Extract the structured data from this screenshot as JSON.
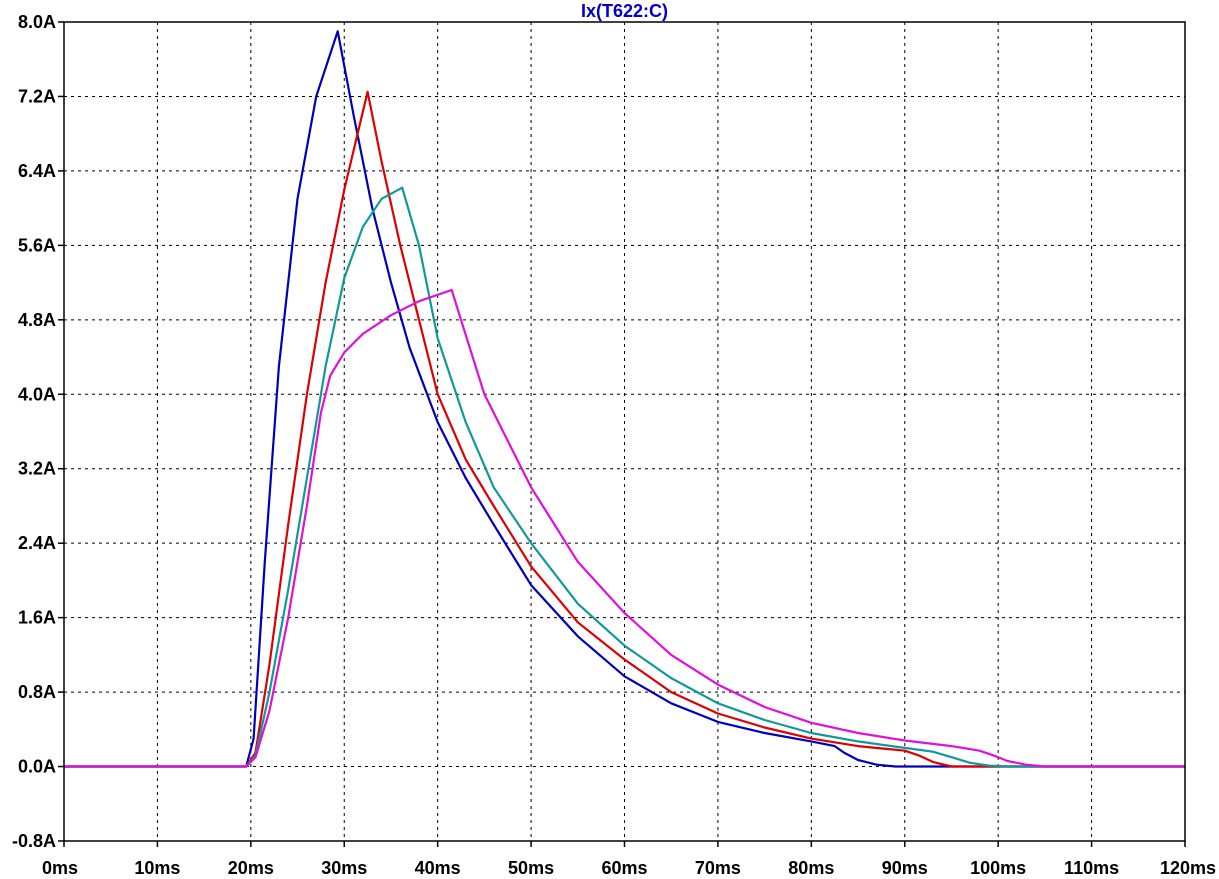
{
  "chart_data": {
    "type": "line",
    "title": "Ix(T622:C)",
    "title_color": "#0000cc",
    "xlabel": "",
    "ylabel": "",
    "xlim": [
      0,
      120
    ],
    "ylim": [
      -0.8,
      8.0
    ],
    "x_unit": "ms",
    "y_unit": "A",
    "grid": true,
    "x_ticks": [
      0,
      10,
      20,
      30,
      40,
      50,
      60,
      70,
      80,
      90,
      100,
      110,
      120
    ],
    "x_tick_labels": [
      "0ms",
      "10ms",
      "20ms",
      "30ms",
      "40ms",
      "50ms",
      "60ms",
      "70ms",
      "80ms",
      "90ms",
      "100ms",
      "110ms",
      "120ms"
    ],
    "y_ticks": [
      -0.8,
      0.0,
      0.8,
      1.6,
      2.4,
      3.2,
      4.0,
      4.8,
      5.6,
      6.4,
      7.2,
      8.0
    ],
    "y_tick_labels": [
      "-0.8A",
      "0.0A",
      "0.8A",
      "1.6A",
      "2.4A",
      "3.2A",
      "4.0A",
      "4.8A",
      "5.6A",
      "6.4A",
      "7.2A",
      "8.0A"
    ],
    "series": [
      {
        "color": "#0000bb",
        "x": [
          0,
          19.5,
          20.3,
          21.5,
          23,
          25,
          27,
          29.3,
          31,
          33,
          35,
          37,
          40,
          43,
          46,
          50,
          55,
          60,
          65,
          70,
          75,
          80,
          82.5,
          83.5,
          85,
          87,
          89,
          92,
          120
        ],
        "y": [
          0,
          0,
          0.3,
          2.2,
          4.3,
          6.1,
          7.2,
          7.9,
          7.0,
          6.0,
          5.2,
          4.5,
          3.7,
          3.1,
          2.6,
          1.95,
          1.4,
          0.97,
          0.68,
          0.48,
          0.36,
          0.27,
          0.22,
          0.15,
          0.07,
          0.02,
          0.0,
          0.0,
          0
        ]
      },
      {
        "color": "#dd0000",
        "x": [
          0,
          19.5,
          20.5,
          22,
          24,
          26,
          28,
          30,
          32.5,
          34,
          36,
          38,
          40,
          43,
          46,
          50,
          55,
          60,
          65,
          70,
          75,
          80,
          85,
          90,
          91.5,
          93,
          95,
          97,
          120
        ],
        "y": [
          0,
          0,
          0.15,
          1.1,
          2.6,
          4.0,
          5.2,
          6.2,
          7.25,
          6.5,
          5.6,
          4.8,
          4.0,
          3.3,
          2.8,
          2.15,
          1.55,
          1.15,
          0.8,
          0.57,
          0.42,
          0.3,
          0.22,
          0.17,
          0.12,
          0.05,
          0.0,
          0.0,
          0
        ]
      },
      {
        "color": "#119999",
        "x": [
          0,
          19.5,
          20.5,
          22,
          24,
          26,
          28,
          30,
          32,
          34,
          36.2,
          38,
          40,
          43,
          46,
          50,
          55,
          60,
          65,
          70,
          75,
          80,
          85,
          90,
          93,
          95,
          97,
          99,
          101,
          120
        ],
        "y": [
          0,
          0,
          0.12,
          0.8,
          1.9,
          3.1,
          4.3,
          5.25,
          5.8,
          6.1,
          6.22,
          5.6,
          4.6,
          3.7,
          3.0,
          2.4,
          1.75,
          1.3,
          0.95,
          0.68,
          0.5,
          0.36,
          0.27,
          0.2,
          0.16,
          0.1,
          0.04,
          0.01,
          0.0,
          0
        ]
      },
      {
        "color": "#dd11dd",
        "x": [
          0,
          19.5,
          20.5,
          22,
          24,
          26,
          27.5,
          28.5,
          30,
          32,
          35,
          38,
          41.5,
          42.5,
          45,
          50,
          55,
          60,
          65,
          70,
          75,
          80,
          85,
          90,
          95,
          98,
          99.5,
          101,
          103,
          105,
          106,
          120
        ],
        "y": [
          0,
          0,
          0.1,
          0.6,
          1.6,
          2.8,
          3.8,
          4.2,
          4.45,
          4.65,
          4.85,
          5.0,
          5.12,
          4.8,
          4.0,
          3.0,
          2.2,
          1.65,
          1.2,
          0.88,
          0.64,
          0.47,
          0.36,
          0.28,
          0.22,
          0.17,
          0.12,
          0.06,
          0.02,
          0.0,
          0.0,
          0
        ]
      }
    ]
  }
}
